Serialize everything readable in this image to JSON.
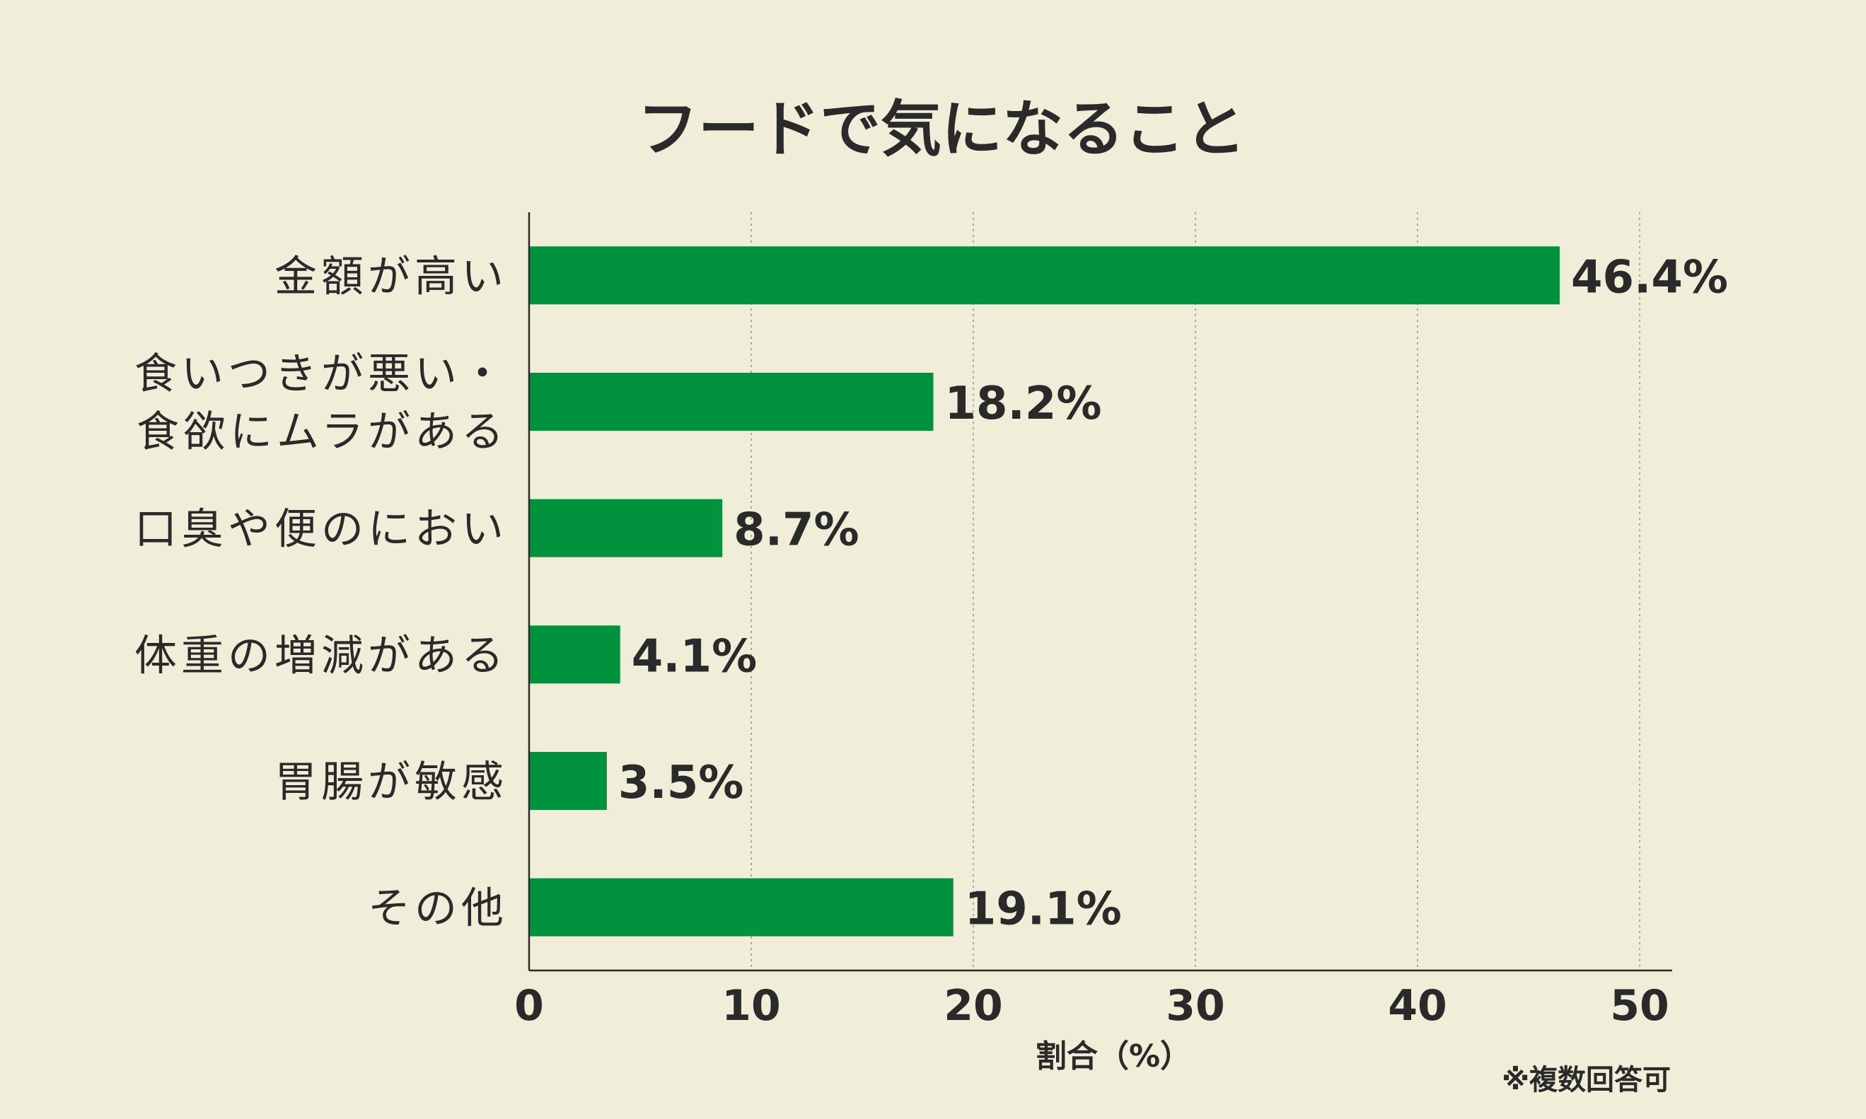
{
  "chart_data": {
    "type": "bar",
    "orientation": "horizontal",
    "title": "フードで気になること",
    "xlabel": "割合（%）",
    "ylabel": "",
    "note": "※複数回答可",
    "categories": [
      [
        "金額が高い"
      ],
      [
        "食いつきが悪い・",
        "食欲にムラがある"
      ],
      [
        "口臭や便のにおい"
      ],
      [
        "体重の増減がある"
      ],
      [
        "胃腸が敏感"
      ],
      [
        "その他"
      ]
    ],
    "values": [
      46.4,
      18.2,
      8.7,
      4.1,
      3.5,
      19.1
    ],
    "value_labels": [
      "46.4%",
      "18.2%",
      "8.7%",
      "4.1%",
      "3.5%",
      "19.1%"
    ],
    "xlim": [
      0,
      50
    ],
    "xticks": [
      0,
      10,
      20,
      30,
      40,
      50
    ],
    "xtick_labels": [
      "0",
      "10",
      "20",
      "30",
      "40",
      "50"
    ],
    "grid": "vertical dotted",
    "legend": "none",
    "colors": {
      "bar": "#00923c",
      "background": "#f0eed8",
      "text": "#2a2a2a",
      "grid": "#a9a9a0"
    }
  }
}
